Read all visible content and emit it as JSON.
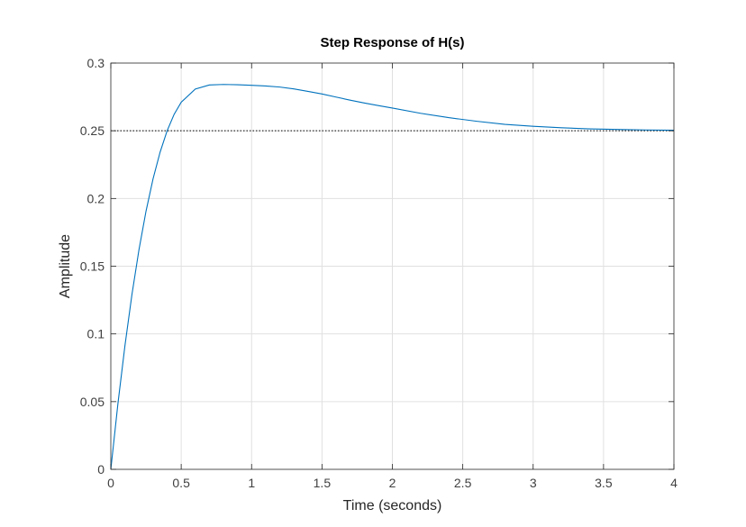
{
  "chart_data": {
    "type": "line",
    "title": "Step Response of H(s)",
    "xlabel": "Time (seconds)",
    "ylabel": "Amplitude",
    "xlim": [
      0,
      4
    ],
    "ylim": [
      0,
      0.3
    ],
    "xticks": [
      0,
      0.5,
      1,
      1.5,
      2,
      2.5,
      3,
      3.5,
      4
    ],
    "xtick_labels": [
      "0",
      "0.5",
      "1",
      "1.5",
      "2",
      "2.5",
      "3",
      "3.5",
      "4"
    ],
    "yticks": [
      0,
      0.05,
      0.1,
      0.15,
      0.2,
      0.25,
      0.3
    ],
    "ytick_labels": [
      "0",
      "0.05",
      "0.1",
      "0.15",
      "0.2",
      "0.25",
      "0.3"
    ],
    "grid": true,
    "steady_state": 0.25,
    "series": [
      {
        "color": "#0072bd",
        "x": [
          0,
          0.05,
          0.1,
          0.15,
          0.2,
          0.25,
          0.3,
          0.35,
          0.4,
          0.45,
          0.5,
          0.6,
          0.7,
          0.8,
          0.9,
          1.0,
          1.1,
          1.2,
          1.3,
          1.4,
          1.5,
          1.6,
          1.7,
          1.8,
          1.9,
          2.0,
          2.2,
          2.4,
          2.6,
          2.8,
          3.0,
          3.2,
          3.4,
          3.6,
          3.8,
          4.0
        ],
        "y": [
          0,
          0.0481,
          0.0911,
          0.1291,
          0.1622,
          0.1906,
          0.2145,
          0.2342,
          0.25,
          0.2622,
          0.2711,
          0.2808,
          0.2838,
          0.2842,
          0.284,
          0.2836,
          0.2831,
          0.2823,
          0.2809,
          0.2791,
          0.2772,
          0.2749,
          0.2726,
          0.2705,
          0.2686,
          0.2668,
          0.2629,
          0.2597,
          0.257,
          0.2547,
          0.2533,
          0.2522,
          0.2514,
          0.251,
          0.2506,
          0.2504
        ]
      }
    ]
  }
}
